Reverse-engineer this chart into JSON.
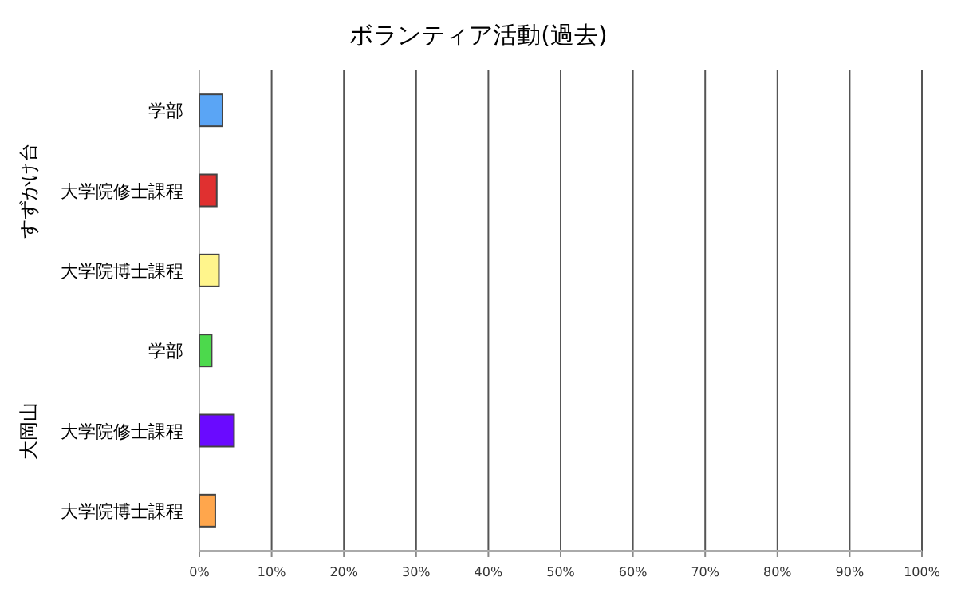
{
  "chart_data": {
    "type": "bar",
    "orientation": "horizontal",
    "title": "ボランティア活動(過去)",
    "categories": [
      "学部",
      "大学院修士課程",
      "大学院博士課程",
      "学部",
      "大学院修士課程",
      "大学院博士課程"
    ],
    "values": [
      3.2,
      2.4,
      2.7,
      1.7,
      4.8,
      2.2
    ],
    "colors": [
      "#5aa5f5",
      "#e03030",
      "#fff58c",
      "#4cd94c",
      "#6a0aff",
      "#ffa64c"
    ],
    "xlim": [
      0,
      100
    ],
    "xticks": [
      {
        "value": 0,
        "label": "0%"
      },
      {
        "value": 10,
        "label": "10%"
      },
      {
        "value": 20,
        "label": "20%"
      },
      {
        "value": 30,
        "label": "30%"
      },
      {
        "value": 40,
        "label": "40%"
      },
      {
        "value": 50,
        "label": "50%"
      },
      {
        "value": 60,
        "label": "60%"
      },
      {
        "value": 70,
        "label": "70%"
      },
      {
        "value": 80,
        "label": "80%"
      },
      {
        "value": 90,
        "label": "90%"
      },
      {
        "value": 100,
        "label": "100%"
      }
    ],
    "grid": "x",
    "annotations": [
      "すずかけ台",
      "大岡山"
    ]
  }
}
